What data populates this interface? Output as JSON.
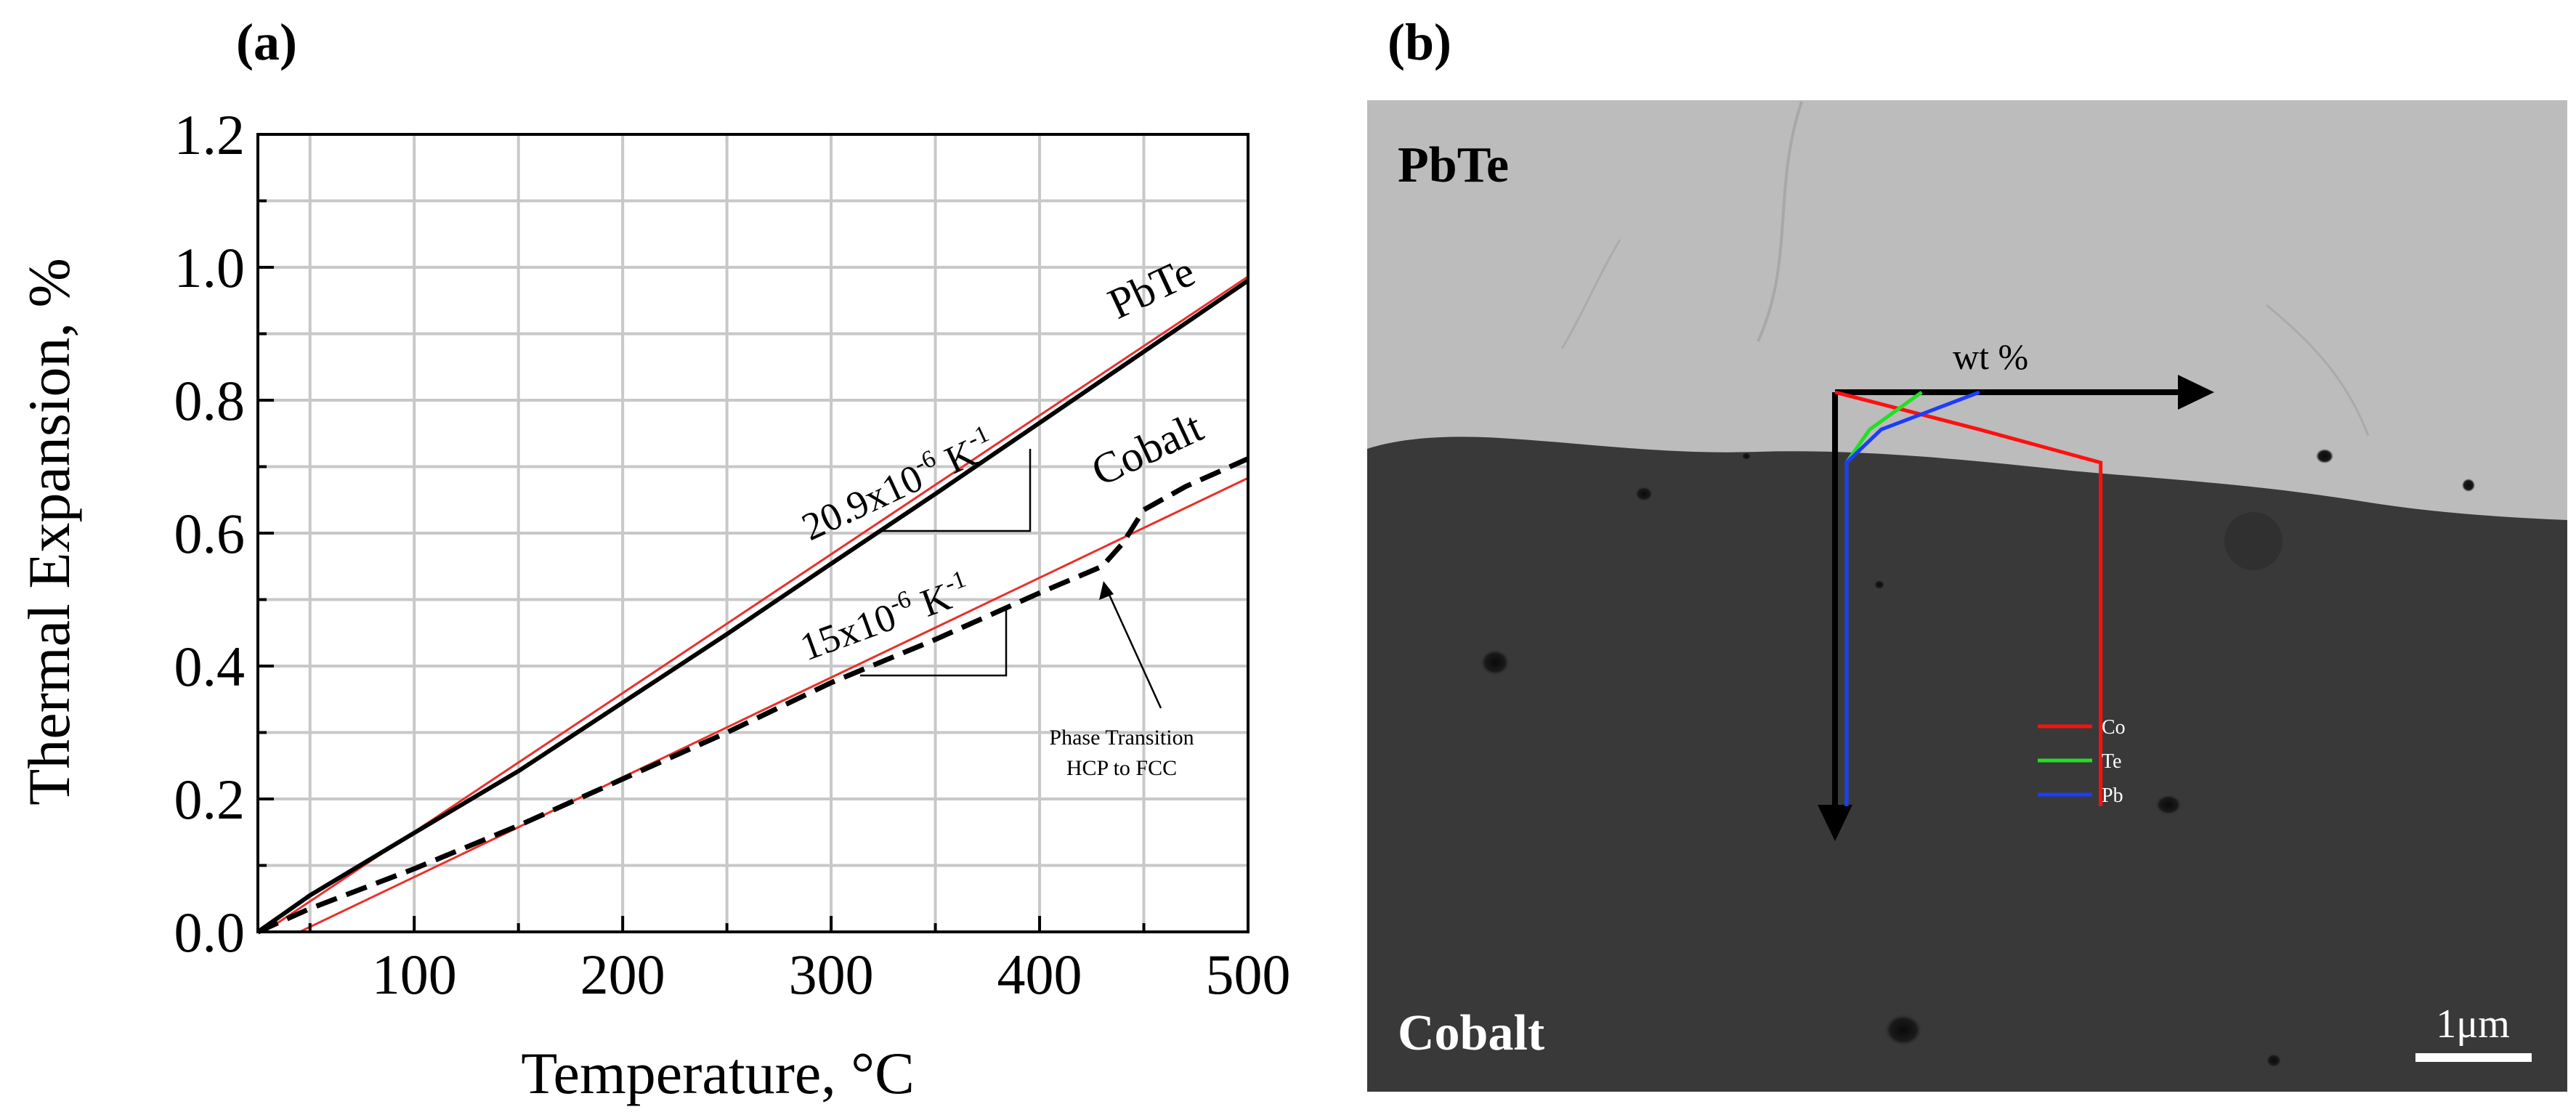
{
  "panel_a_label": "(a)",
  "panel_b_label": "(b)",
  "chart_data": [
    {
      "type": "line",
      "title": "(a)",
      "xlabel": "Temperature, °C",
      "ylabel": "Thermal Expansion, %",
      "xlim": [
        25,
        500
      ],
      "ylim": [
        0,
        1.2
      ],
      "grid": true,
      "xticks": [
        100,
        200,
        300,
        400,
        500
      ],
      "yticks": [
        0.0,
        0.2,
        0.4,
        0.6,
        0.8,
        1.0,
        1.2
      ],
      "x_tick_labels": [
        "100",
        "200",
        "300",
        "400",
        "500"
      ],
      "y_tick_labels": [
        "0.0",
        "0.2",
        "0.4",
        "0.6",
        "0.8",
        "1.0",
        "1.2"
      ],
      "series": [
        {
          "name": "PbTe",
          "style": "solid",
          "color": "#000000",
          "x": [
            25,
            50,
            100,
            150,
            200,
            250,
            300,
            350,
            400,
            450,
            500
          ],
          "y": [
            0.0,
            0.055,
            0.149,
            0.242,
            0.345,
            0.448,
            0.554,
            0.659,
            0.766,
            0.873,
            0.98
          ]
        },
        {
          "name": "PbTe linear fit (20.9x10^-6 K^-1)",
          "style": "solid",
          "color": "#e8312a",
          "x": [
            28,
            500
          ],
          "y": [
            0.0,
            0.986
          ]
        },
        {
          "name": "Cobalt",
          "style": "dashed",
          "color": "#000000",
          "x": [
            25,
            50,
            100,
            150,
            200,
            250,
            300,
            350,
            400,
            430,
            440,
            450,
            470,
            500
          ],
          "y": [
            0.0,
            0.035,
            0.095,
            0.16,
            0.23,
            0.3,
            0.375,
            0.44,
            0.51,
            0.55,
            0.585,
            0.635,
            0.67,
            0.712
          ]
        },
        {
          "name": "Cobalt linear fit (15x10^-6 K^-1)",
          "style": "solid",
          "color": "#e8312a",
          "x": [
            45,
            500
          ],
          "y": [
            0.0,
            0.683
          ]
        }
      ],
      "annotations": {
        "pbte_label": "PbTe",
        "cobalt_label": "Cobalt",
        "pbte_slope_main": "20.9x10",
        "pbte_slope_exp": "-6",
        "pbte_slope_unit": " K",
        "pbte_slope_unit_exp": "-1",
        "cobalt_slope_main": "15x10",
        "cobalt_slope_exp": "-6",
        "cobalt_slope_unit": " K",
        "cobalt_slope_unit_exp": "-1",
        "phase_line1": "Phase Transition",
        "phase_line2": "HCP to FCC"
      }
    },
    {
      "type": "line",
      "title": "(b)",
      "xlabel": "",
      "ylabel": "",
      "legend": [
        "Co",
        "Te",
        "Pb"
      ],
      "series": [
        {
          "name": "Co",
          "color": "#ff1010",
          "wt_percent": [
            0,
            25,
            46,
            46,
            46
          ],
          "depth_fraction": [
            0,
            0.09,
            0.17,
            0.3,
            1.0
          ]
        },
        {
          "name": "Te",
          "color": "#22e022",
          "wt_percent": [
            15,
            6,
            2,
            2,
            2
          ],
          "depth_fraction": [
            0,
            0.09,
            0.17,
            0.3,
            1.0
          ]
        },
        {
          "name": "Pb",
          "color": "#1c3cff",
          "wt_percent": [
            25,
            8,
            2,
            2,
            2
          ],
          "depth_fraction": [
            0,
            0.09,
            0.17,
            0.3,
            1.0
          ]
        }
      ]
    }
  ],
  "sem": {
    "top_label": "PbTe",
    "bottom_label": "Cobalt",
    "axis_label": "wt %",
    "scale_bar": "1μm",
    "legend": [
      {
        "label": "Co",
        "color": "#ff1010"
      },
      {
        "label": "Te",
        "color": "#22e022"
      },
      {
        "label": "Pb",
        "color": "#1c3cff"
      }
    ]
  }
}
